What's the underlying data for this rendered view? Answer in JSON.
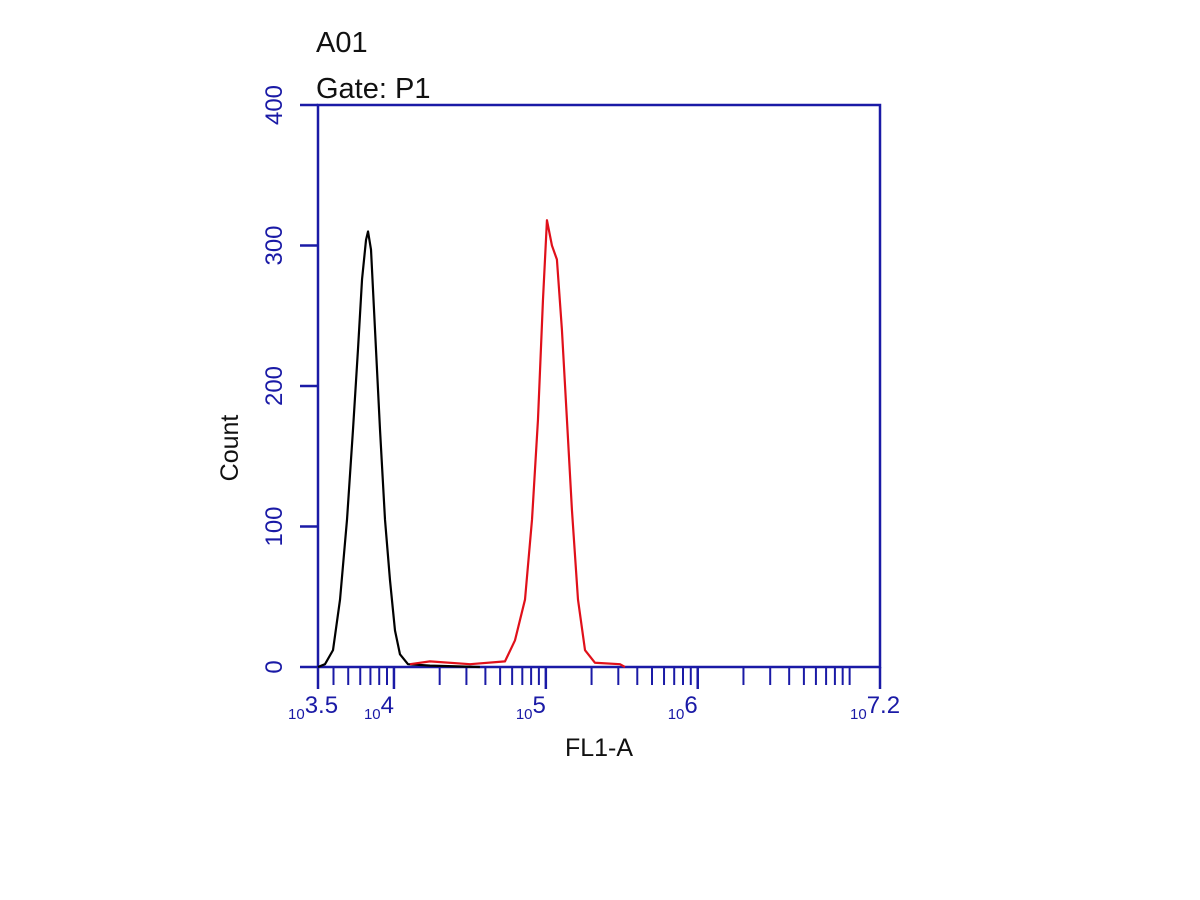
{
  "chart_data": {
    "type": "histogram-line",
    "title": "A01",
    "subtitle": "Gate: P1",
    "x_label": "FL1-A",
    "y_label": "Count",
    "log_x": true,
    "xlim": [
      3162.28,
      15848931.92
    ],
    "xticks": [
      {
        "value": 3162.28,
        "label": "10",
        "exponent": "3.5"
      },
      {
        "value": 10000,
        "label": "10",
        "exponent": "4"
      },
      {
        "value": 100000,
        "label": "10",
        "exponent": "5"
      },
      {
        "value": 1000000,
        "label": "10",
        "exponent": "6"
      },
      {
        "value": 15848931.92,
        "label": "10",
        "exponent": "7.2"
      }
    ],
    "xminorticks": [
      4000,
      5000,
      6000,
      7000,
      8000,
      9000,
      20000,
      30000,
      40000,
      50000,
      60000,
      70000,
      80000,
      90000,
      200000,
      300000,
      400000,
      500000,
      600000,
      700000,
      800000,
      900000,
      2000000,
      3000000,
      4000000,
      5000000,
      6000000,
      7000000,
      8000000,
      9000000,
      10000000
    ],
    "ylim": [
      0,
      400
    ],
    "yticks": [
      0,
      100,
      200,
      300,
      400
    ],
    "axis_color": "#1a1aa6",
    "series": [
      {
        "color": "#000000",
        "x": [
          3162,
          3516,
          3970,
          4416,
          4910,
          5376,
          5797,
          6166,
          6550,
          6750,
          7063,
          7505,
          8095,
          8730,
          9413,
          10160,
          10960,
          12370,
          17260,
          36810
        ],
        "values": [
          0,
          2,
          12,
          48,
          105,
          169,
          226,
          276,
          304,
          310,
          297,
          240,
          169,
          105,
          62,
          26,
          9,
          2,
          1,
          0
        ]
      },
      {
        "color": "#e0101a",
        "x": [
          12760,
          17260,
          31700,
          53830,
          62660,
          72930,
          81100,
          88750,
          95720,
          101700,
          109700,
          118300,
          127600,
          137700,
          148500,
          162800,
          181100,
          210700,
          307700,
          331700
        ],
        "values": [
          2,
          4,
          2,
          4,
          19,
          48,
          105,
          176,
          261,
          318,
          300,
          290,
          240,
          176,
          112,
          48,
          12,
          3,
          2,
          0
        ]
      }
    ]
  }
}
